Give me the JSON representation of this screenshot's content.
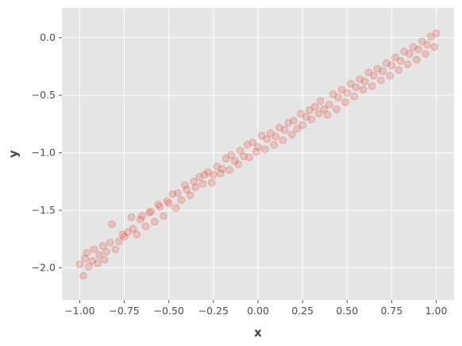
{
  "chart_data": {
    "type": "scatter",
    "title": "",
    "xlabel": "x",
    "ylabel": "y",
    "xlim": [
      -1.1,
      1.1
    ],
    "ylim": [
      -2.28,
      0.26
    ],
    "xticks": [
      -1.0,
      -0.75,
      -0.5,
      -0.25,
      0.0,
      0.25,
      0.5,
      0.75,
      1.0
    ],
    "xtick_labels": [
      "−1.00",
      "−0.75",
      "−0.50",
      "−0.25",
      "0.00",
      "0.25",
      "0.50",
      "0.75",
      "1.00"
    ],
    "yticks": [
      0.0,
      -0.5,
      -1.0,
      -1.5,
      -2.0
    ],
    "ytick_labels": [
      "0.0",
      "−0.5",
      "−1.0",
      "−1.5",
      "−2.0"
    ],
    "grid": true,
    "legend": "none",
    "colors": {
      "plot_background": "#e5e5e5",
      "grid": "#ffffff",
      "points": "#e24a33"
    },
    "series": [
      {
        "x": [
          -1.0,
          -0.98,
          -0.97,
          -0.96,
          -0.95,
          -0.93,
          -0.92,
          -0.9,
          -0.89,
          -0.87,
          -0.86,
          -0.85,
          -0.83,
          -0.82,
          -0.8,
          -0.78,
          -0.76,
          -0.75,
          -0.73,
          -0.71,
          -0.7,
          -0.68,
          -0.66,
          -0.65,
          -0.63,
          -0.61,
          -0.6,
          -0.58,
          -0.56,
          -0.55,
          -0.53,
          -0.51,
          -0.5,
          -0.48,
          -0.46,
          -0.45,
          -0.43,
          -0.41,
          -0.4,
          -0.38,
          -0.36,
          -0.35,
          -0.33,
          -0.31,
          -0.3,
          -0.28,
          -0.26,
          -0.25,
          -0.23,
          -0.21,
          -0.2,
          -0.18,
          -0.16,
          -0.15,
          -0.13,
          -0.11,
          -0.1,
          -0.08,
          -0.06,
          -0.05,
          -0.03,
          -0.01,
          0.0,
          0.02,
          0.04,
          0.05,
          0.07,
          0.09,
          0.1,
          0.12,
          0.14,
          0.15,
          0.17,
          0.19,
          0.2,
          0.22,
          0.24,
          0.25,
          0.27,
          0.29,
          0.3,
          0.32,
          0.34,
          0.35,
          0.37,
          0.39,
          0.4,
          0.42,
          0.44,
          0.45,
          0.47,
          0.49,
          0.5,
          0.52,
          0.54,
          0.55,
          0.57,
          0.59,
          0.6,
          0.62,
          0.64,
          0.65,
          0.67,
          0.69,
          0.7,
          0.72,
          0.74,
          0.75,
          0.77,
          0.79,
          0.8,
          0.82,
          0.84,
          0.85,
          0.87,
          0.89,
          0.9,
          0.92,
          0.94,
          0.95,
          0.97,
          0.99,
          1.0
        ],
        "y": [
          -1.97,
          -2.07,
          -1.92,
          -1.87,
          -1.99,
          -1.94,
          -1.84,
          -1.96,
          -1.89,
          -1.81,
          -1.93,
          -1.86,
          -1.78,
          -1.62,
          -1.84,
          -1.77,
          -1.71,
          -1.73,
          -1.69,
          -1.56,
          -1.66,
          -1.71,
          -1.58,
          -1.55,
          -1.64,
          -1.52,
          -1.51,
          -1.6,
          -1.45,
          -1.47,
          -1.55,
          -1.42,
          -1.44,
          -1.36,
          -1.48,
          -1.35,
          -1.41,
          -1.28,
          -1.32,
          -1.37,
          -1.25,
          -1.3,
          -1.21,
          -1.27,
          -1.19,
          -1.17,
          -1.26,
          -1.19,
          -1.12,
          -1.18,
          -1.14,
          -1.05,
          -1.15,
          -1.02,
          -1.07,
          -1.1,
          -0.98,
          -1.03,
          -0.93,
          -1.04,
          -0.91,
          -0.99,
          -0.95,
          -0.85,
          -0.97,
          -0.88,
          -0.83,
          -0.93,
          -0.86,
          -0.78,
          -0.89,
          -0.8,
          -0.74,
          -0.84,
          -0.72,
          -0.79,
          -0.66,
          -0.76,
          -0.69,
          -0.63,
          -0.71,
          -0.6,
          -0.66,
          -0.55,
          -0.62,
          -0.67,
          -0.58,
          -0.49,
          -0.62,
          -0.52,
          -0.45,
          -0.56,
          -0.48,
          -0.4,
          -0.51,
          -0.43,
          -0.36,
          -0.45,
          -0.38,
          -0.3,
          -0.42,
          -0.33,
          -0.27,
          -0.37,
          -0.29,
          -0.22,
          -0.33,
          -0.24,
          -0.17,
          -0.28,
          -0.2,
          -0.12,
          -0.23,
          -0.14,
          -0.08,
          -0.19,
          -0.1,
          -0.03,
          -0.14,
          -0.06,
          0.01,
          -0.08,
          0.04
        ]
      }
    ]
  }
}
